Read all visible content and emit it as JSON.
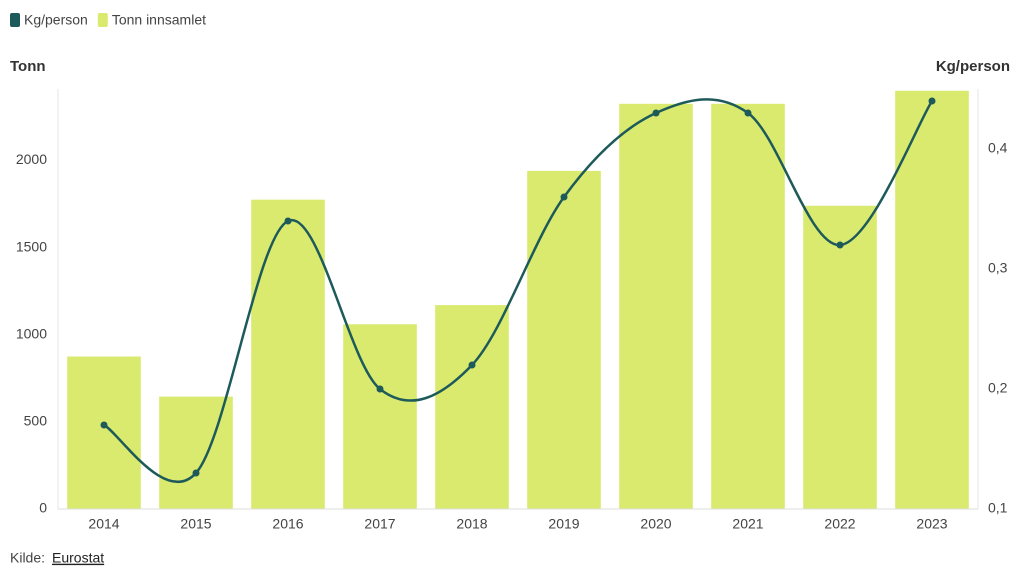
{
  "chart_data": {
    "type": "bar",
    "categories": [
      "2014",
      "2015",
      "2016",
      "2017",
      "2018",
      "2019",
      "2020",
      "2021",
      "2022",
      "2023"
    ],
    "series": [
      {
        "name": "Kg/person",
        "type": "line",
        "axis": "y2",
        "color": "#1e5a5a",
        "values": [
          0.17,
          0.13,
          0.34,
          0.2,
          0.22,
          0.36,
          0.43,
          0.43,
          0.32,
          0.44
        ]
      },
      {
        "name": "Tonn innsamlet",
        "type": "bar",
        "color": "#d9ea6e",
        "values": [
          875,
          645,
          1775,
          1060,
          1170,
          1940,
          2325,
          2325,
          1740,
          2400
        ]
      }
    ],
    "y_label": "Tonn",
    "y2_label": "Kg/person",
    "ylim": [
      0,
      2410
    ],
    "yticks": [
      0,
      500,
      1000,
      1500,
      2000
    ],
    "y2lim": [
      0.1,
      0.45
    ],
    "y2ticks": [
      {
        "value": 0.1,
        "label": "0,1"
      },
      {
        "value": 0.2,
        "label": "0,2"
      },
      {
        "value": 0.3,
        "label": "0,3"
      },
      {
        "value": 0.4,
        "label": "0,4"
      }
    ],
    "source_label": "Kilde:",
    "source": "Eurostat"
  }
}
